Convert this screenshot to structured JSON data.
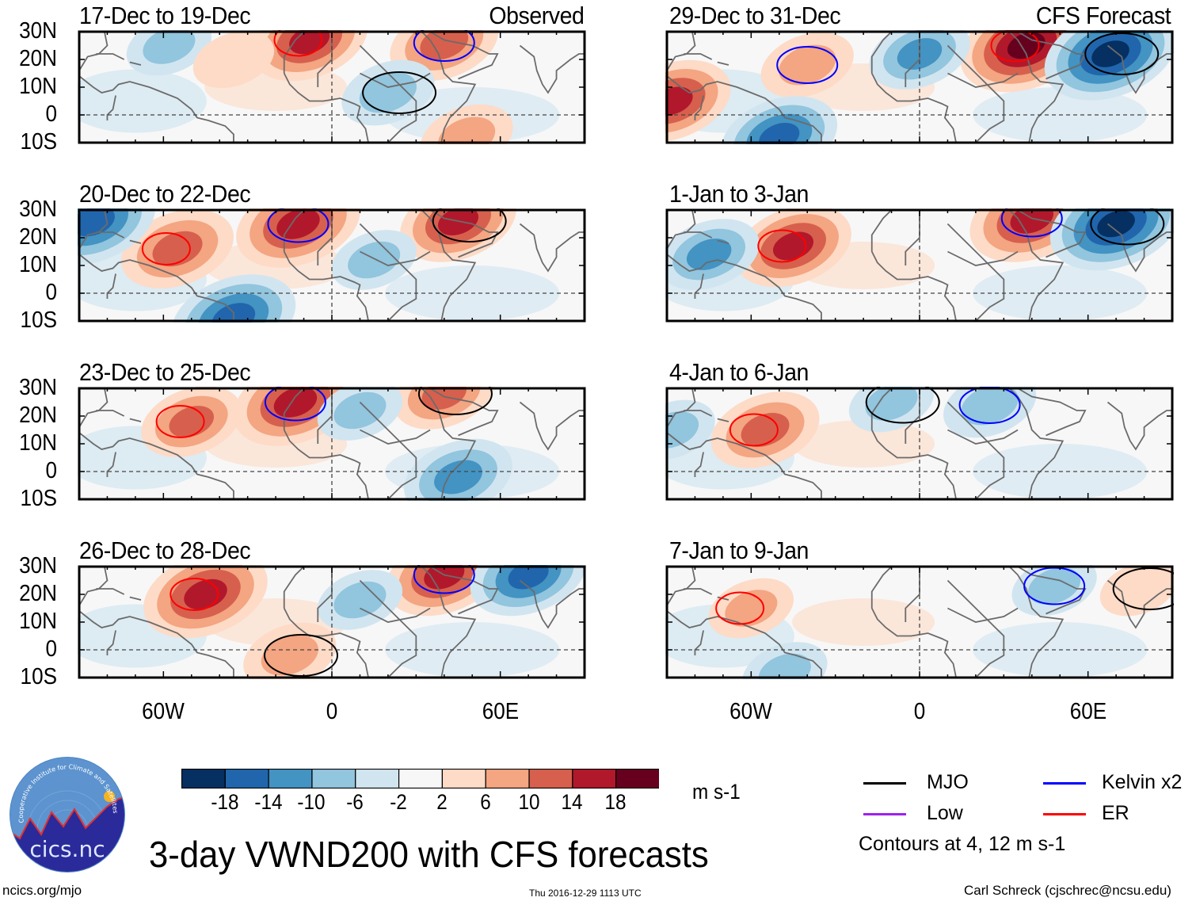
{
  "figure": {
    "title": "3-day VWND200 with CFS forecasts",
    "footer_left": "ncics.org/mjo",
    "footer_center": "Thu 2016-12-29 1113 UTC",
    "footer_right": "Carl Schreck (cjschrec@ncsu.edu)",
    "logo_text": "cics.nc",
    "logo_ring_text": "Cooperative Institute for Climate and Satellites",
    "column_labels": {
      "left": "Observed",
      "right": "CFS Forecast"
    }
  },
  "axes": {
    "y_ticks": [
      "30N",
      "20N",
      "10N",
      "0",
      "10S"
    ],
    "x_ticks": [
      "60W",
      "0",
      "60E"
    ]
  },
  "colorbar": {
    "unit": "m s-1",
    "ticks": [
      "-18",
      "-14",
      "-10",
      "-6",
      "-2",
      "2",
      "6",
      "10",
      "14",
      "18"
    ],
    "colors": [
      "#053061",
      "#2166ac",
      "#4393c3",
      "#92c5de",
      "#d1e5f0",
      "#f7f7f7",
      "#fddbc7",
      "#f4a582",
      "#d6604d",
      "#b2182b",
      "#67001f"
    ]
  },
  "legend": {
    "items": [
      {
        "label": "MJO",
        "color": "#000000"
      },
      {
        "label": "Kelvin x2",
        "color": "#0000ff"
      },
      {
        "label": "Low",
        "color": "#a020f0"
      },
      {
        "label": "ER",
        "color": "#ff0000"
      }
    ],
    "note": "Contours at 4, 12 m s-1"
  },
  "chart_data": {
    "type": "heatmap",
    "variable": "200-hPa meridional wind anomaly (VWND200), 3-day mean",
    "units": "m s-1",
    "lon_range": [
      -90,
      90
    ],
    "lat_range": [
      -10,
      30
    ],
    "contour_levels": [
      4,
      12
    ],
    "color_levels": [
      -18,
      -14,
      -10,
      -6,
      -2,
      2,
      6,
      10,
      14,
      18
    ],
    "panels": [
      {
        "label": "17-Dec to 19-Dec",
        "source": "Observed",
        "features": [
          {
            "lon": -8,
            "lat": 27,
            "value": 16
          },
          {
            "lon": 40,
            "lat": 26,
            "value": 14
          },
          {
            "lon": 20,
            "lat": 8,
            "value": -10
          },
          {
            "lon": -58,
            "lat": 25,
            "value": -8
          },
          {
            "lon": -35,
            "lat": 20,
            "value": 7
          },
          {
            "lon": 48,
            "lat": -8,
            "value": 10
          }
        ]
      },
      {
        "label": "20-Dec to 22-Dec",
        "source": "Observed",
        "features": [
          {
            "lon": -55,
            "lat": 16,
            "value": 15
          },
          {
            "lon": -12,
            "lat": 25,
            "value": 18
          },
          {
            "lon": 45,
            "lat": 26,
            "value": 16
          },
          {
            "lon": -85,
            "lat": 26,
            "value": -18
          },
          {
            "lon": -35,
            "lat": -9,
            "value": -18
          },
          {
            "lon": 15,
            "lat": 12,
            "value": -8
          }
        ]
      },
      {
        "label": "23-Dec to 25-Dec",
        "source": "Observed",
        "features": [
          {
            "lon": -50,
            "lat": 18,
            "value": 12
          },
          {
            "lon": -13,
            "lat": 25,
            "value": 18
          },
          {
            "lon": 40,
            "lat": 28,
            "value": 12
          },
          {
            "lon": 45,
            "lat": -2,
            "value": -14
          },
          {
            "lon": 10,
            "lat": 22,
            "value": -8
          }
        ]
      },
      {
        "label": "26-Dec to 28-Dec",
        "source": "Observed",
        "features": [
          {
            "lon": -45,
            "lat": 20,
            "value": 18
          },
          {
            "lon": 40,
            "lat": 27,
            "value": 16
          },
          {
            "lon": -15,
            "lat": -2,
            "value": 10
          },
          {
            "lon": 70,
            "lat": 27,
            "value": -16
          },
          {
            "lon": 10,
            "lat": 18,
            "value": -8
          }
        ]
      },
      {
        "label": "29-Dec to 31-Dec",
        "source": "CFS Forecast",
        "features": [
          {
            "lon": 38,
            "lat": 25,
            "value": 20
          },
          {
            "lon": -40,
            "lat": 18,
            "value": 10
          },
          {
            "lon": 68,
            "lat": 22,
            "value": -20
          },
          {
            "lon": 0,
            "lat": 22,
            "value": -12
          },
          {
            "lon": -50,
            "lat": -8,
            "value": -16
          },
          {
            "lon": -88,
            "lat": 5,
            "value": 16
          }
        ]
      },
      {
        "label": "1-Jan to 3-Jan",
        "source": "CFS Forecast",
        "features": [
          {
            "lon": -45,
            "lat": 17,
            "value": 16
          },
          {
            "lon": 40,
            "lat": 27,
            "value": 18
          },
          {
            "lon": 70,
            "lat": 25,
            "value": -20
          },
          {
            "lon": -75,
            "lat": 14,
            "value": -12
          }
        ]
      },
      {
        "label": "4-Jan to 6-Jan",
        "source": "CFS Forecast",
        "features": [
          {
            "lon": -55,
            "lat": 15,
            "value": 14
          },
          {
            "lon": 25,
            "lat": 24,
            "value": -10
          },
          {
            "lon": -10,
            "lat": 25,
            "value": -8
          },
          {
            "lon": -88,
            "lat": 15,
            "value": -8
          }
        ]
      },
      {
        "label": "7-Jan to 9-Jan",
        "source": "CFS Forecast",
        "features": [
          {
            "lon": -60,
            "lat": 15,
            "value": 8
          },
          {
            "lon": 48,
            "lat": 23,
            "value": -8
          },
          {
            "lon": 78,
            "lat": 22,
            "value": 6
          },
          {
            "lon": -48,
            "lat": -8,
            "value": -8
          }
        ]
      }
    ]
  }
}
